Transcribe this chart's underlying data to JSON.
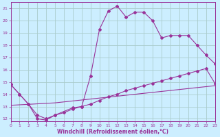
{
  "xlabel": "Windchill (Refroidissement éolien,°C)",
  "bg_color": "#cceeff",
  "grid_color": "#aacccc",
  "line_color": "#993399",
  "spine_color": "#993399",
  "xlim": [
    0,
    23
  ],
  "ylim": [
    11.8,
    21.5
  ],
  "xticks": [
    0,
    1,
    2,
    3,
    4,
    5,
    6,
    7,
    8,
    9,
    10,
    11,
    12,
    13,
    14,
    15,
    16,
    17,
    18,
    19,
    20,
    21,
    22,
    23
  ],
  "yticks": [
    12,
    13,
    14,
    15,
    16,
    17,
    18,
    19,
    20,
    21
  ],
  "line1_x": [
    0,
    1,
    2,
    3,
    4,
    5,
    7,
    8,
    9,
    10,
    11,
    12,
    13,
    14,
    15,
    16,
    17,
    18,
    19,
    20,
    21,
    22,
    23
  ],
  "line1_y": [
    14.8,
    14.0,
    13.2,
    12.0,
    11.9,
    12.3,
    12.9,
    13.0,
    15.5,
    19.3,
    20.8,
    21.2,
    20.3,
    20.7,
    20.7,
    20.0,
    18.6,
    18.8,
    18.8,
    18.8,
    18.0,
    17.2,
    16.5
  ],
  "line2_x": [
    0,
    1,
    2,
    3,
    4,
    5,
    6,
    7,
    8,
    9,
    10,
    11,
    12,
    13,
    14,
    15,
    16,
    17,
    18,
    19,
    20,
    21,
    22,
    23
  ],
  "line2_y": [
    14.8,
    14.0,
    13.2,
    12.3,
    12.0,
    12.3,
    12.5,
    12.8,
    13.0,
    13.2,
    13.5,
    13.8,
    14.0,
    14.3,
    14.5,
    14.7,
    14.9,
    15.1,
    15.3,
    15.5,
    15.7,
    15.9,
    16.1,
    14.9
  ],
  "line3_x": [
    0,
    5,
    23
  ],
  "line3_y": [
    13.1,
    13.3,
    14.7
  ]
}
